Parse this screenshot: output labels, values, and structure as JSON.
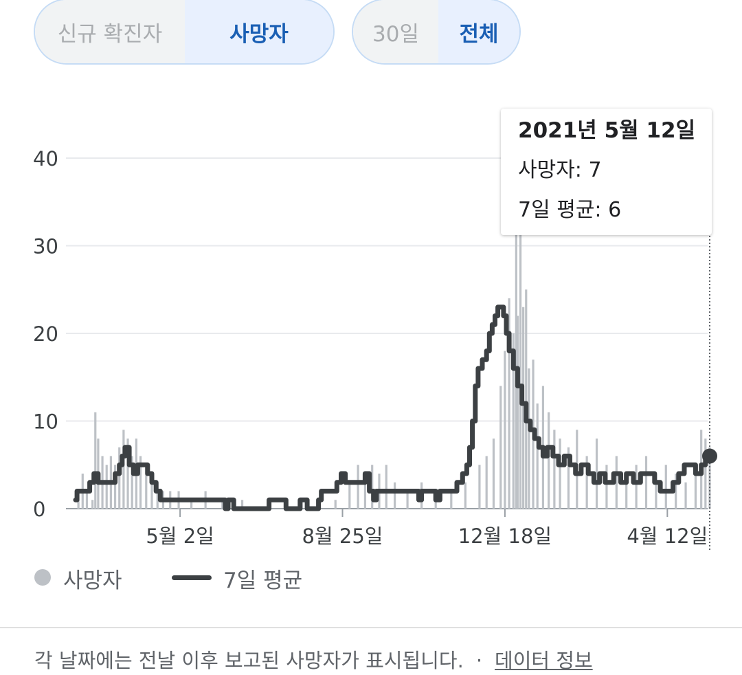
{
  "metric_toggle": {
    "options": [
      "신규 확진자",
      "사망자"
    ],
    "selected": "사망자"
  },
  "range_toggle": {
    "options": [
      "30일",
      "전체"
    ],
    "selected": "전체"
  },
  "tooltip": {
    "date": "2021년 5월 12일",
    "deaths_line": "사망자: 7",
    "avg_line": "7일 평균: 6"
  },
  "legend": {
    "deaths_label": "사망자",
    "avg_label": "7일 평균"
  },
  "footer": {
    "note": "각 날짜에는 전날 이후 보고된 사망자가 표시됩니다.",
    "separator": "·",
    "link": "데이터 정보"
  },
  "colors": {
    "bars": "#bdc1c6",
    "average_line": "#3c4043",
    "grid": "#e8eaed",
    "tooltip_guide": "#5f6368"
  },
  "chart_data": {
    "type": "bar",
    "title": "",
    "xlabel": "",
    "ylabel": "",
    "ylim": [
      0,
      40
    ],
    "yticks": [
      0,
      10,
      20,
      30,
      40
    ],
    "x_tick_labels": [
      "5월 2일",
      "8월 25일",
      "12월 18일",
      "4월 12일"
    ],
    "x_range": [
      "2020-02-18",
      "2021-05-12"
    ],
    "grid": true,
    "legend_position": "bottom",
    "highlighted_point": {
      "date": "2021-05-12",
      "deaths": 7,
      "seven_day_average": 6
    },
    "series": [
      {
        "name": "사망자",
        "type": "bar",
        "points": [
          [
            "2020-02-20",
            1
          ],
          [
            "2020-02-23",
            4
          ],
          [
            "2020-02-26",
            2
          ],
          [
            "2020-03-01",
            1
          ],
          [
            "2020-03-03",
            11
          ],
          [
            "2020-03-05",
            8
          ],
          [
            "2020-03-08",
            6
          ],
          [
            "2020-03-11",
            5
          ],
          [
            "2020-03-14",
            6
          ],
          [
            "2020-03-17",
            5
          ],
          [
            "2020-03-20",
            7
          ],
          [
            "2020-03-23",
            9
          ],
          [
            "2020-03-26",
            8
          ],
          [
            "2020-03-29",
            6
          ],
          [
            "2020-04-01",
            8
          ],
          [
            "2020-04-04",
            6
          ],
          [
            "2020-04-08",
            5
          ],
          [
            "2020-04-12",
            4
          ],
          [
            "2020-04-16",
            3
          ],
          [
            "2020-04-20",
            2
          ],
          [
            "2020-04-25",
            2
          ],
          [
            "2020-05-01",
            2
          ],
          [
            "2020-05-10",
            1
          ],
          [
            "2020-05-20",
            2
          ],
          [
            "2020-06-01",
            1
          ],
          [
            "2020-06-15",
            1
          ],
          [
            "2020-06-28",
            0
          ],
          [
            "2020-07-10",
            0
          ],
          [
            "2020-07-25",
            1
          ],
          [
            "2020-08-08",
            0
          ],
          [
            "2020-08-20",
            1
          ],
          [
            "2020-08-30",
            3
          ],
          [
            "2020-09-05",
            5
          ],
          [
            "2020-09-10",
            4
          ],
          [
            "2020-09-15",
            5
          ],
          [
            "2020-09-20",
            4
          ],
          [
            "2020-09-25",
            5
          ],
          [
            "2020-10-01",
            3
          ],
          [
            "2020-10-10",
            2
          ],
          [
            "2020-10-20",
            3
          ],
          [
            "2020-10-30",
            2
          ],
          [
            "2020-11-10",
            2
          ],
          [
            "2020-11-20",
            3
          ],
          [
            "2020-11-30",
            5
          ],
          [
            "2020-12-05",
            6
          ],
          [
            "2020-12-10",
            8
          ],
          [
            "2020-12-15",
            14
          ],
          [
            "2020-12-18",
            18
          ],
          [
            "2020-12-21",
            24
          ],
          [
            "2020-12-24",
            20
          ],
          [
            "2020-12-26",
            32
          ],
          [
            "2020-12-27",
            22
          ],
          [
            "2020-12-29",
            40
          ],
          [
            "2020-12-31",
            23
          ],
          [
            "2021-01-02",
            25
          ],
          [
            "2021-01-04",
            16
          ],
          [
            "2021-01-07",
            17
          ],
          [
            "2021-01-10",
            12
          ],
          [
            "2021-01-14",
            14
          ],
          [
            "2021-01-18",
            11
          ],
          [
            "2021-01-22",
            9
          ],
          [
            "2021-01-26",
            8
          ],
          [
            "2021-02-01",
            7
          ],
          [
            "2021-02-07",
            9
          ],
          [
            "2021-02-14",
            6
          ],
          [
            "2021-02-21",
            8
          ],
          [
            "2021-02-28",
            5
          ],
          [
            "2021-03-07",
            6
          ],
          [
            "2021-03-14",
            4
          ],
          [
            "2021-03-21",
            5
          ],
          [
            "2021-03-28",
            6
          ],
          [
            "2021-04-04",
            4
          ],
          [
            "2021-04-11",
            5
          ],
          [
            "2021-04-18",
            4
          ],
          [
            "2021-04-25",
            3
          ],
          [
            "2021-05-02",
            5
          ],
          [
            "2021-05-06",
            9
          ],
          [
            "2021-05-09",
            8
          ],
          [
            "2021-05-12",
            7
          ]
        ]
      },
      {
        "name": "7일 평균",
        "type": "step-line",
        "points": [
          [
            "2020-02-18",
            1
          ],
          [
            "2020-02-19",
            2
          ],
          [
            "2020-02-26",
            2
          ],
          [
            "2020-02-28",
            3
          ],
          [
            "2020-03-02",
            4
          ],
          [
            "2020-03-05",
            3
          ],
          [
            "2020-03-15",
            3
          ],
          [
            "2020-03-17",
            4
          ],
          [
            "2020-03-20",
            5
          ],
          [
            "2020-03-22",
            6
          ],
          [
            "2020-03-24",
            7
          ],
          [
            "2020-03-27",
            5
          ],
          [
            "2020-03-30",
            4
          ],
          [
            "2020-04-02",
            5
          ],
          [
            "2020-04-06",
            5
          ],
          [
            "2020-04-09",
            4
          ],
          [
            "2020-04-12",
            3
          ],
          [
            "2020-04-15",
            2
          ],
          [
            "2020-04-18",
            1
          ],
          [
            "2020-05-31",
            1
          ],
          [
            "2020-06-03",
            0
          ],
          [
            "2020-06-05",
            1
          ],
          [
            "2020-06-09",
            0
          ],
          [
            "2020-07-02",
            0
          ],
          [
            "2020-07-04",
            1
          ],
          [
            "2020-07-14",
            1
          ],
          [
            "2020-07-16",
            0
          ],
          [
            "2020-07-24",
            0
          ],
          [
            "2020-07-26",
            1
          ],
          [
            "2020-07-31",
            0
          ],
          [
            "2020-08-05",
            0
          ],
          [
            "2020-08-08",
            1
          ],
          [
            "2020-08-10",
            2
          ],
          [
            "2020-08-18",
            2
          ],
          [
            "2020-08-21",
            3
          ],
          [
            "2020-08-24",
            4
          ],
          [
            "2020-08-27",
            3
          ],
          [
            "2020-09-05",
            3
          ],
          [
            "2020-09-10",
            4
          ],
          [
            "2020-09-13",
            2
          ],
          [
            "2020-09-16",
            1
          ],
          [
            "2020-09-18",
            2
          ],
          [
            "2020-10-15",
            2
          ],
          [
            "2020-10-18",
            1
          ],
          [
            "2020-10-20",
            2
          ],
          [
            "2020-10-30",
            1
          ],
          [
            "2020-11-02",
            2
          ],
          [
            "2020-11-10",
            2
          ],
          [
            "2020-11-14",
            3
          ],
          [
            "2020-11-18",
            4
          ],
          [
            "2020-11-21",
            5
          ],
          [
            "2020-11-23",
            7
          ],
          [
            "2020-11-25",
            10
          ],
          [
            "2020-11-27",
            14
          ],
          [
            "2020-11-29",
            16
          ],
          [
            "2020-12-02",
            17
          ],
          [
            "2020-12-05",
            18
          ],
          [
            "2020-12-07",
            20
          ],
          [
            "2020-12-09",
            21
          ],
          [
            "2020-12-11",
            22
          ],
          [
            "2020-12-13",
            23
          ],
          [
            "2020-12-17",
            22
          ],
          [
            "2020-12-19",
            20
          ],
          [
            "2020-12-21",
            18
          ],
          [
            "2020-12-24",
            16
          ],
          [
            "2020-12-27",
            14
          ],
          [
            "2020-12-30",
            12
          ],
          [
            "2021-01-02",
            10
          ],
          [
            "2021-01-05",
            9
          ],
          [
            "2021-01-08",
            8
          ],
          [
            "2021-01-11",
            7
          ],
          [
            "2021-01-14",
            6
          ],
          [
            "2021-01-17",
            7
          ],
          [
            "2021-01-21",
            6
          ],
          [
            "2021-01-25",
            5
          ],
          [
            "2021-01-29",
            6
          ],
          [
            "2021-02-02",
            5
          ],
          [
            "2021-02-06",
            4
          ],
          [
            "2021-02-10",
            5
          ],
          [
            "2021-02-15",
            4
          ],
          [
            "2021-02-19",
            3
          ],
          [
            "2021-02-23",
            4
          ],
          [
            "2021-02-27",
            3
          ],
          [
            "2021-03-05",
            4
          ],
          [
            "2021-03-10",
            3
          ],
          [
            "2021-03-14",
            4
          ],
          [
            "2021-03-19",
            3
          ],
          [
            "2021-03-24",
            4
          ],
          [
            "2021-03-29",
            4
          ],
          [
            "2021-04-03",
            3
          ],
          [
            "2021-04-07",
            2
          ],
          [
            "2021-04-12",
            2
          ],
          [
            "2021-04-16",
            3
          ],
          [
            "2021-04-20",
            4
          ],
          [
            "2021-04-24",
            5
          ],
          [
            "2021-04-28",
            5
          ],
          [
            "2021-05-02",
            4
          ],
          [
            "2021-05-06",
            5
          ],
          [
            "2021-05-09",
            6
          ],
          [
            "2021-05-12",
            6
          ]
        ]
      }
    ]
  }
}
